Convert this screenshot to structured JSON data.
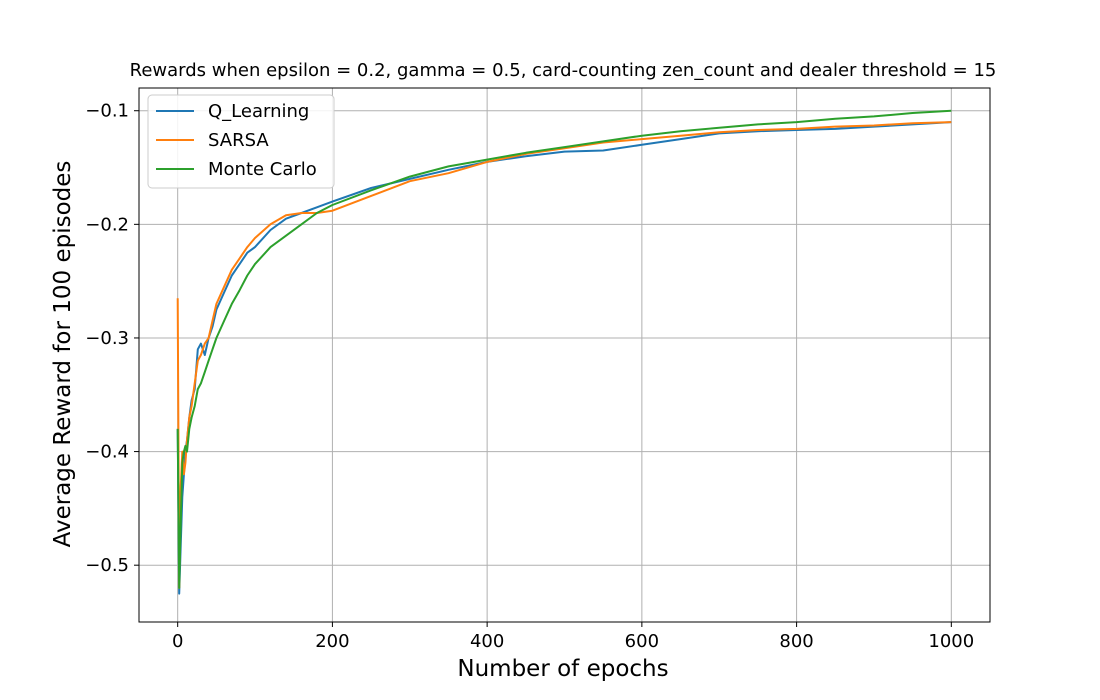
{
  "chart_data": {
    "type": "line",
    "title": "Rewards when epsilon = 0.2, gamma = 0.5, card-counting zen_count and dealer threshold = 15",
    "xlabel": "Number of epochs",
    "ylabel": "Average Reward for 100 episodes",
    "xlim": [
      -50,
      1050
    ],
    "ylim": [
      -0.55,
      -0.08
    ],
    "xticks": [
      0,
      200,
      400,
      600,
      800,
      1000
    ],
    "xtick_labels": [
      "0",
      "200",
      "400",
      "600",
      "800",
      "1000"
    ],
    "yticks": [
      -0.5,
      -0.4,
      -0.3,
      -0.2,
      -0.1
    ],
    "ytick_labels": [
      "−0.5",
      "−0.4",
      "−0.3",
      "−0.2",
      "−0.1"
    ],
    "grid": true,
    "legend_position": "top-left",
    "series": [
      {
        "name": "Q_Learning",
        "color": "#1f77b4",
        "x": [
          0,
          2,
          4,
          6,
          8,
          10,
          12,
          15,
          18,
          22,
          26,
          30,
          35,
          40,
          45,
          50,
          60,
          70,
          80,
          90,
          100,
          120,
          140,
          160,
          180,
          200,
          250,
          300,
          350,
          400,
          450,
          500,
          550,
          600,
          650,
          700,
          750,
          800,
          850,
          900,
          950,
          1000
        ],
        "y": [
          -0.38,
          -0.525,
          -0.48,
          -0.44,
          -0.42,
          -0.4,
          -0.39,
          -0.37,
          -0.355,
          -0.345,
          -0.31,
          -0.305,
          -0.315,
          -0.3,
          -0.29,
          -0.275,
          -0.26,
          -0.245,
          -0.235,
          -0.225,
          -0.22,
          -0.205,
          -0.195,
          -0.19,
          -0.185,
          -0.18,
          -0.168,
          -0.16,
          -0.152,
          -0.145,
          -0.14,
          -0.136,
          -0.135,
          -0.13,
          -0.125,
          -0.12,
          -0.118,
          -0.117,
          -0.116,
          -0.114,
          -0.112,
          -0.11
        ]
      },
      {
        "name": "SARSA",
        "color": "#ff7f0e",
        "x": [
          0,
          2,
          4,
          6,
          8,
          10,
          12,
          15,
          18,
          22,
          26,
          30,
          35,
          40,
          45,
          50,
          60,
          70,
          80,
          90,
          100,
          120,
          140,
          160,
          180,
          200,
          250,
          300,
          350,
          400,
          450,
          500,
          550,
          600,
          650,
          700,
          750,
          800,
          850,
          900,
          950,
          1000
        ],
        "y": [
          -0.265,
          -0.52,
          -0.43,
          -0.4,
          -0.42,
          -0.41,
          -0.39,
          -0.37,
          -0.36,
          -0.34,
          -0.32,
          -0.315,
          -0.305,
          -0.3,
          -0.285,
          -0.27,
          -0.255,
          -0.24,
          -0.23,
          -0.22,
          -0.212,
          -0.2,
          -0.192,
          -0.19,
          -0.19,
          -0.188,
          -0.175,
          -0.162,
          -0.155,
          -0.145,
          -0.138,
          -0.133,
          -0.128,
          -0.125,
          -0.122,
          -0.119,
          -0.117,
          -0.116,
          -0.114,
          -0.113,
          -0.111,
          -0.11
        ]
      },
      {
        "name": "Monte Carlo",
        "color": "#2ca02c",
        "x": [
          0,
          2,
          4,
          6,
          8,
          10,
          12,
          15,
          18,
          22,
          26,
          30,
          35,
          40,
          45,
          50,
          60,
          70,
          80,
          90,
          100,
          120,
          140,
          160,
          180,
          200,
          250,
          300,
          350,
          400,
          450,
          500,
          550,
          600,
          650,
          700,
          750,
          800,
          850,
          900,
          950,
          1000
        ],
        "y": [
          -0.38,
          -0.52,
          -0.46,
          -0.41,
          -0.4,
          -0.395,
          -0.4,
          -0.38,
          -0.37,
          -0.36,
          -0.345,
          -0.34,
          -0.33,
          -0.32,
          -0.31,
          -0.3,
          -0.285,
          -0.27,
          -0.258,
          -0.245,
          -0.235,
          -0.22,
          -0.21,
          -0.2,
          -0.19,
          -0.183,
          -0.17,
          -0.158,
          -0.149,
          -0.143,
          -0.137,
          -0.132,
          -0.127,
          -0.122,
          -0.118,
          -0.115,
          -0.112,
          -0.11,
          -0.107,
          -0.105,
          -0.102,
          -0.1
        ]
      }
    ]
  }
}
